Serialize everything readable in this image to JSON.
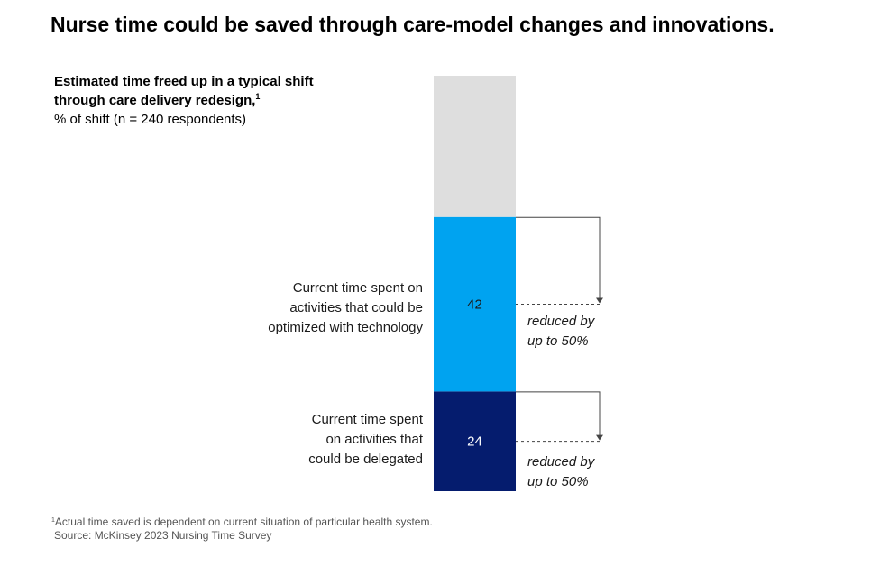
{
  "headline": "Nurse time could be saved through care-model changes and innovations.",
  "subtitle": {
    "line1": "Estimated time freed up in a typical shift",
    "line2": "through care delivery redesign,",
    "note_marker": "1",
    "unit": "% of shift (n = 240 respondents)"
  },
  "chart_data": {
    "type": "bar",
    "stacked": true,
    "ylim": [
      0,
      100
    ],
    "series": [
      {
        "value": 24,
        "label_lines": [
          "Current time spent",
          "on activities that",
          "could be delegated"
        ],
        "color": "#051c6e",
        "annotation_lines": [
          "reduced by",
          "up to 50%"
        ]
      },
      {
        "value": 42,
        "label_lines": [
          "Current time spent on",
          "activities that could be",
          "optimized with technology"
        ],
        "color": "#00a3f0",
        "annotation_lines": [
          "reduced by",
          "up to 50%"
        ]
      },
      {
        "value": 34,
        "color": "#dedede"
      }
    ]
  },
  "footnote": {
    "marker": "1",
    "text": "Actual time saved is dependent on current situation of particular health system.",
    "source": "Source: McKinsey 2023 Nursing Time Survey"
  }
}
